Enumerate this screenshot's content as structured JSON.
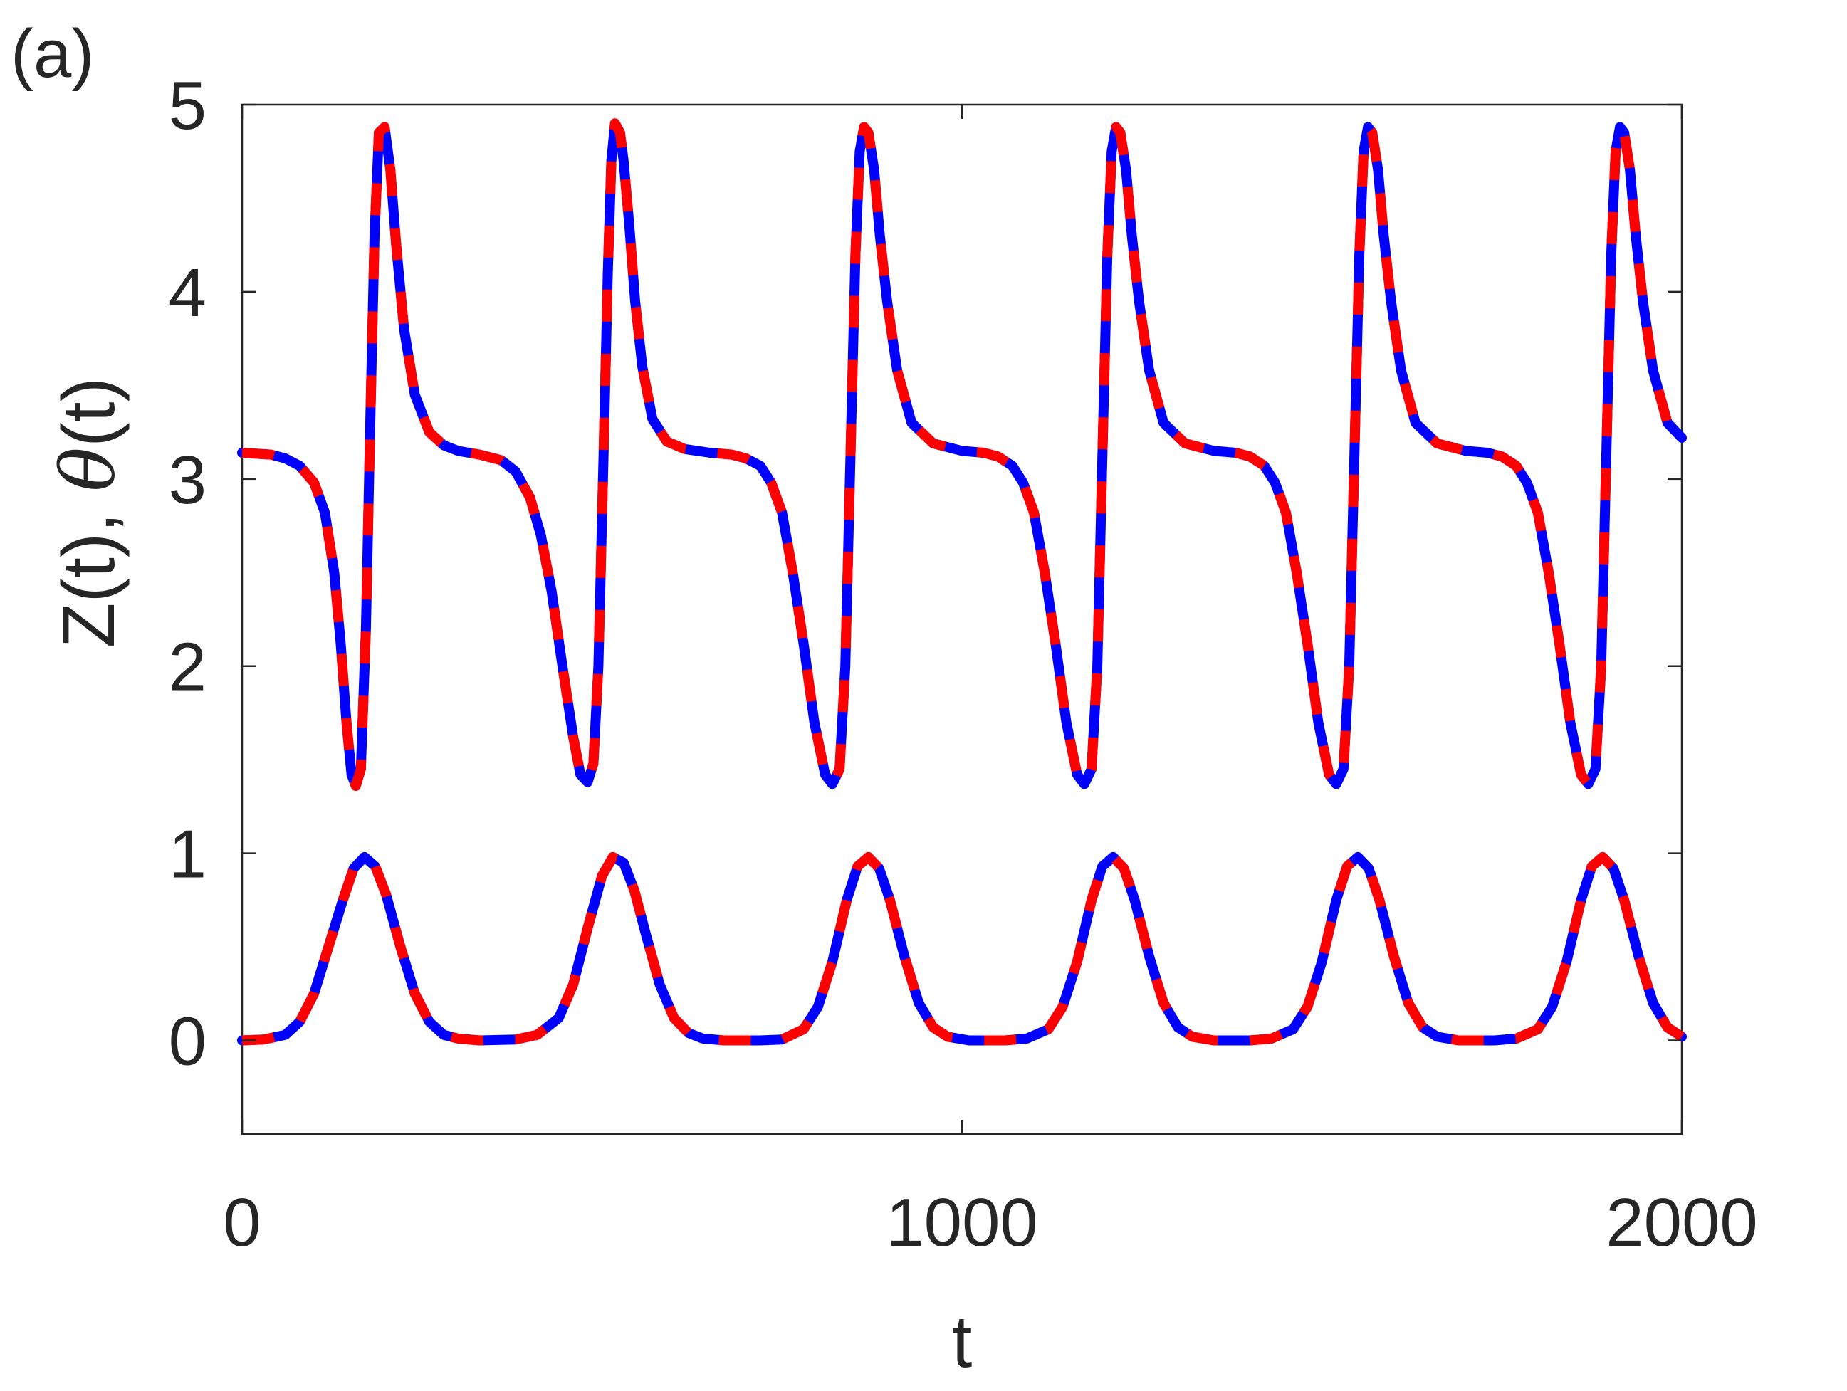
{
  "panel_label": "(a)",
  "chart_data": {
    "type": "line",
    "title": "",
    "xlabel": "t",
    "ylabel_parts": [
      "Z(t), ",
      "θ",
      "(t)"
    ],
    "xlim": [
      0,
      2000
    ],
    "ylim": [
      -0.5,
      5
    ],
    "xticks": [
      0,
      1000,
      2000
    ],
    "xtick_labels": [
      "0",
      "1000",
      "2000"
    ],
    "yticks": [
      0,
      1,
      2,
      3,
      4,
      5
    ],
    "ytick_labels": [
      "0",
      "1",
      "2",
      "3",
      "4",
      "5"
    ],
    "grid": false,
    "line_style": "alternating blue and red dashes on the same curve",
    "colors": {
      "blue": "#0000ff",
      "red": "#ff0000",
      "axis": "#262626"
    },
    "series": [
      {
        "x": [
          0,
          40,
          60,
          80,
          100,
          115,
          128,
          137,
          145,
          152,
          158,
          165,
          172,
          178,
          184,
          190,
          198,
          206,
          214,
          225,
          240,
          260,
          280,
          300,
          330,
          360,
          380,
          400,
          415,
          430,
          445,
          460,
          470,
          480,
          488,
          495,
          502,
          508,
          513,
          518,
          525,
          530,
          538,
          546,
          556,
          570,
          590,
          615,
          650,
          680,
          700,
          720,
          735,
          750,
          765,
          780,
          795,
          810,
          820,
          830,
          838,
          845,
          852,
          858,
          864,
          870,
          878,
          886,
          896,
          910,
          930,
          960,
          1000,
          1030,
          1050,
          1070,
          1085,
          1100,
          1115,
          1130,
          1145,
          1160,
          1170,
          1180,
          1188,
          1195,
          1202,
          1208,
          1214,
          1220,
          1228,
          1236,
          1246,
          1260,
          1280,
          1310,
          1350,
          1380,
          1400,
          1420,
          1435,
          1450,
          1465,
          1480,
          1495,
          1510,
          1520,
          1530,
          1538,
          1545,
          1552,
          1558,
          1564,
          1570,
          1578,
          1586,
          1596,
          1610,
          1630,
          1660,
          1700,
          1730,
          1750,
          1770,
          1785,
          1800,
          1815,
          1830,
          1845,
          1860,
          1870,
          1880,
          1888,
          1895,
          1902,
          1908,
          1914,
          1920,
          1928,
          1936,
          1946,
          1960,
          1980,
          2000
        ],
        "y": [
          3.14,
          3.13,
          3.11,
          3.07,
          2.98,
          2.82,
          2.5,
          2.12,
          1.7,
          1.42,
          1.36,
          1.45,
          2.2,
          3.3,
          4.3,
          4.85,
          4.88,
          4.65,
          4.25,
          3.8,
          3.45,
          3.25,
          3.18,
          3.15,
          3.13,
          3.1,
          3.04,
          2.9,
          2.7,
          2.4,
          2.0,
          1.62,
          1.42,
          1.38,
          1.48,
          2.0,
          3.1,
          4.1,
          4.7,
          4.9,
          4.85,
          4.7,
          4.35,
          3.95,
          3.6,
          3.32,
          3.2,
          3.16,
          3.14,
          3.13,
          3.11,
          3.07,
          2.98,
          2.82,
          2.5,
          2.12,
          1.7,
          1.42,
          1.37,
          1.45,
          2.0,
          3.1,
          4.2,
          4.75,
          4.88,
          4.85,
          4.65,
          4.3,
          3.95,
          3.58,
          3.3,
          3.19,
          3.15,
          3.14,
          3.12,
          3.07,
          2.98,
          2.82,
          2.5,
          2.12,
          1.7,
          1.42,
          1.37,
          1.45,
          2.0,
          3.1,
          4.2,
          4.75,
          4.88,
          4.85,
          4.65,
          4.3,
          3.95,
          3.58,
          3.3,
          3.19,
          3.15,
          3.14,
          3.12,
          3.07,
          2.98,
          2.82,
          2.5,
          2.12,
          1.7,
          1.42,
          1.37,
          1.45,
          2.0,
          3.1,
          4.2,
          4.75,
          4.88,
          4.85,
          4.65,
          4.3,
          3.95,
          3.58,
          3.3,
          3.19,
          3.15,
          3.14,
          3.12,
          3.07,
          2.98,
          2.82,
          2.5,
          2.12,
          1.7,
          1.42,
          1.37,
          1.45,
          2.0,
          3.1,
          4.2,
          4.75,
          4.88,
          4.85,
          4.65,
          4.3,
          3.95,
          3.58,
          3.3,
          3.22
        ]
      },
      {
        "x": [
          0,
          30,
          60,
          80,
          100,
          120,
          140,
          155,
          170,
          185,
          200,
          220,
          240,
          260,
          280,
          300,
          330,
          380,
          410,
          440,
          460,
          480,
          500,
          515,
          530,
          545,
          560,
          580,
          600,
          620,
          640,
          670,
          720,
          750,
          780,
          800,
          820,
          840,
          855,
          870,
          885,
          900,
          920,
          940,
          960,
          980,
          1010,
          1060,
          1090,
          1120,
          1140,
          1160,
          1180,
          1195,
          1210,
          1225,
          1240,
          1260,
          1280,
          1300,
          1320,
          1350,
          1400,
          1430,
          1460,
          1480,
          1500,
          1520,
          1535,
          1550,
          1565,
          1580,
          1600,
          1620,
          1640,
          1660,
          1690,
          1740,
          1770,
          1800,
          1820,
          1840,
          1860,
          1875,
          1890,
          1905,
          1920,
          1940,
          1960,
          1980,
          2000
        ],
        "y": [
          0,
          0.005,
          0.03,
          0.1,
          0.25,
          0.5,
          0.75,
          0.92,
          0.98,
          0.93,
          0.78,
          0.5,
          0.25,
          0.1,
          0.03,
          0.01,
          0,
          0.005,
          0.03,
          0.12,
          0.3,
          0.6,
          0.88,
          0.98,
          0.95,
          0.8,
          0.58,
          0.3,
          0.12,
          0.04,
          0.01,
          0,
          0,
          0.005,
          0.06,
          0.18,
          0.42,
          0.75,
          0.93,
          0.98,
          0.92,
          0.75,
          0.45,
          0.2,
          0.07,
          0.02,
          0,
          0,
          0.01,
          0.06,
          0.18,
          0.42,
          0.75,
          0.93,
          0.98,
          0.92,
          0.75,
          0.45,
          0.2,
          0.07,
          0.02,
          0,
          0,
          0.01,
          0.06,
          0.18,
          0.42,
          0.75,
          0.93,
          0.98,
          0.92,
          0.75,
          0.45,
          0.2,
          0.07,
          0.02,
          0,
          0,
          0.01,
          0.06,
          0.18,
          0.42,
          0.75,
          0.93,
          0.98,
          0.92,
          0.75,
          0.45,
          0.2,
          0.07,
          0.02
        ]
      }
    ]
  }
}
